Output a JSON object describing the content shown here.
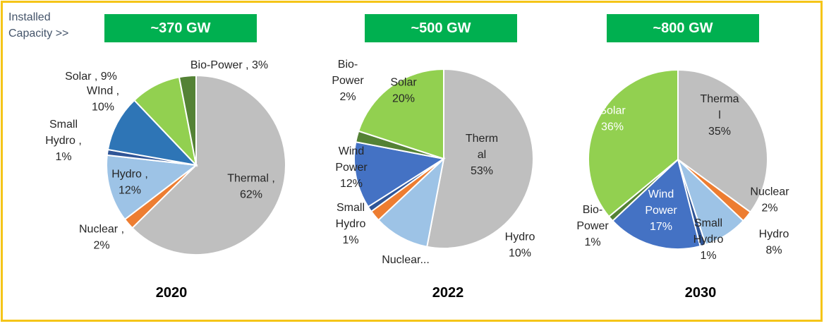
{
  "header": {
    "label_line1": "Installed",
    "label_line2": "Capacity >>"
  },
  "colors": {
    "thermal": "#bfbfbf",
    "nuclear": "#ed7d31",
    "hydro": "#9dc3e6",
    "small_hydro": "#2f5597",
    "wind": "#2e75b6",
    "solar": "#92d050",
    "bio_power": "#548235",
    "header_bg": "#00b050",
    "frame": "#f5c518"
  },
  "chart_data": [
    {
      "type": "pie",
      "title": "2020",
      "capacity": "~370 GW",
      "slices": [
        {
          "name": "Thermal",
          "value": 62,
          "label": [
            "Thermal ,",
            "62%"
          ]
        },
        {
          "name": "Nuclear",
          "value": 2,
          "label": [
            "Nuclear ,",
            "2%"
          ]
        },
        {
          "name": "Hydro",
          "value": 12,
          "label": [
            "Hydro ,",
            "12%"
          ]
        },
        {
          "name": "Small Hydro",
          "value": 1,
          "label": [
            "Small",
            "Hydro ,",
            "1%"
          ]
        },
        {
          "name": "WInd",
          "value": 10,
          "label": [
            "WInd ,",
            "10%"
          ]
        },
        {
          "name": "Solar",
          "value": 9,
          "label": [
            "Solar , 9%"
          ]
        },
        {
          "name": "Bio-Power",
          "value": 3,
          "label": [
            "Bio-Power , 3%"
          ]
        }
      ]
    },
    {
      "type": "pie",
      "title": "2022",
      "capacity": "~500 GW",
      "slices": [
        {
          "name": "Thermal",
          "value": 53,
          "label": [
            "Therm",
            "al",
            "53%"
          ]
        },
        {
          "name": "Hydro",
          "value": 10,
          "label": [
            "Hydro",
            "10%"
          ]
        },
        {
          "name": "Nuclear",
          "value": 2,
          "label": [
            "Nuclear..."
          ]
        },
        {
          "name": "Small Hydro",
          "value": 1,
          "label": [
            "Small",
            "Hydro",
            "1%"
          ]
        },
        {
          "name": "Wind Power",
          "value": 12,
          "label": [
            "Wind",
            "Power",
            "12%"
          ]
        },
        {
          "name": "Bio-Power",
          "value": 2,
          "label": [
            "Bio-",
            "Power",
            "2%"
          ]
        },
        {
          "name": "Solar",
          "value": 20,
          "label": [
            "Solar",
            "20%"
          ]
        }
      ]
    },
    {
      "type": "pie",
      "title": "2030",
      "capacity": "~800 GW",
      "slices": [
        {
          "name": "Thermal",
          "value": 35,
          "label": [
            "Therma",
            "l",
            "35%"
          ]
        },
        {
          "name": "Nuclear",
          "value": 2,
          "label": [
            "Nuclear",
            "2%"
          ]
        },
        {
          "name": "Hydro",
          "value": 8,
          "label": [
            "Hydro",
            "8%"
          ]
        },
        {
          "name": "Small Hydro",
          "value": 1,
          "label": [
            "Small",
            "Hydro",
            "1%"
          ]
        },
        {
          "name": "Wind Power",
          "value": 17,
          "label": [
            "Wind",
            "Power",
            "17%"
          ]
        },
        {
          "name": "Bio-Power",
          "value": 1,
          "label": [
            "Bio-",
            "Power",
            "1%"
          ]
        },
        {
          "name": "Solar",
          "value": 36,
          "label": [
            "Solar",
            "36%"
          ]
        }
      ]
    }
  ]
}
